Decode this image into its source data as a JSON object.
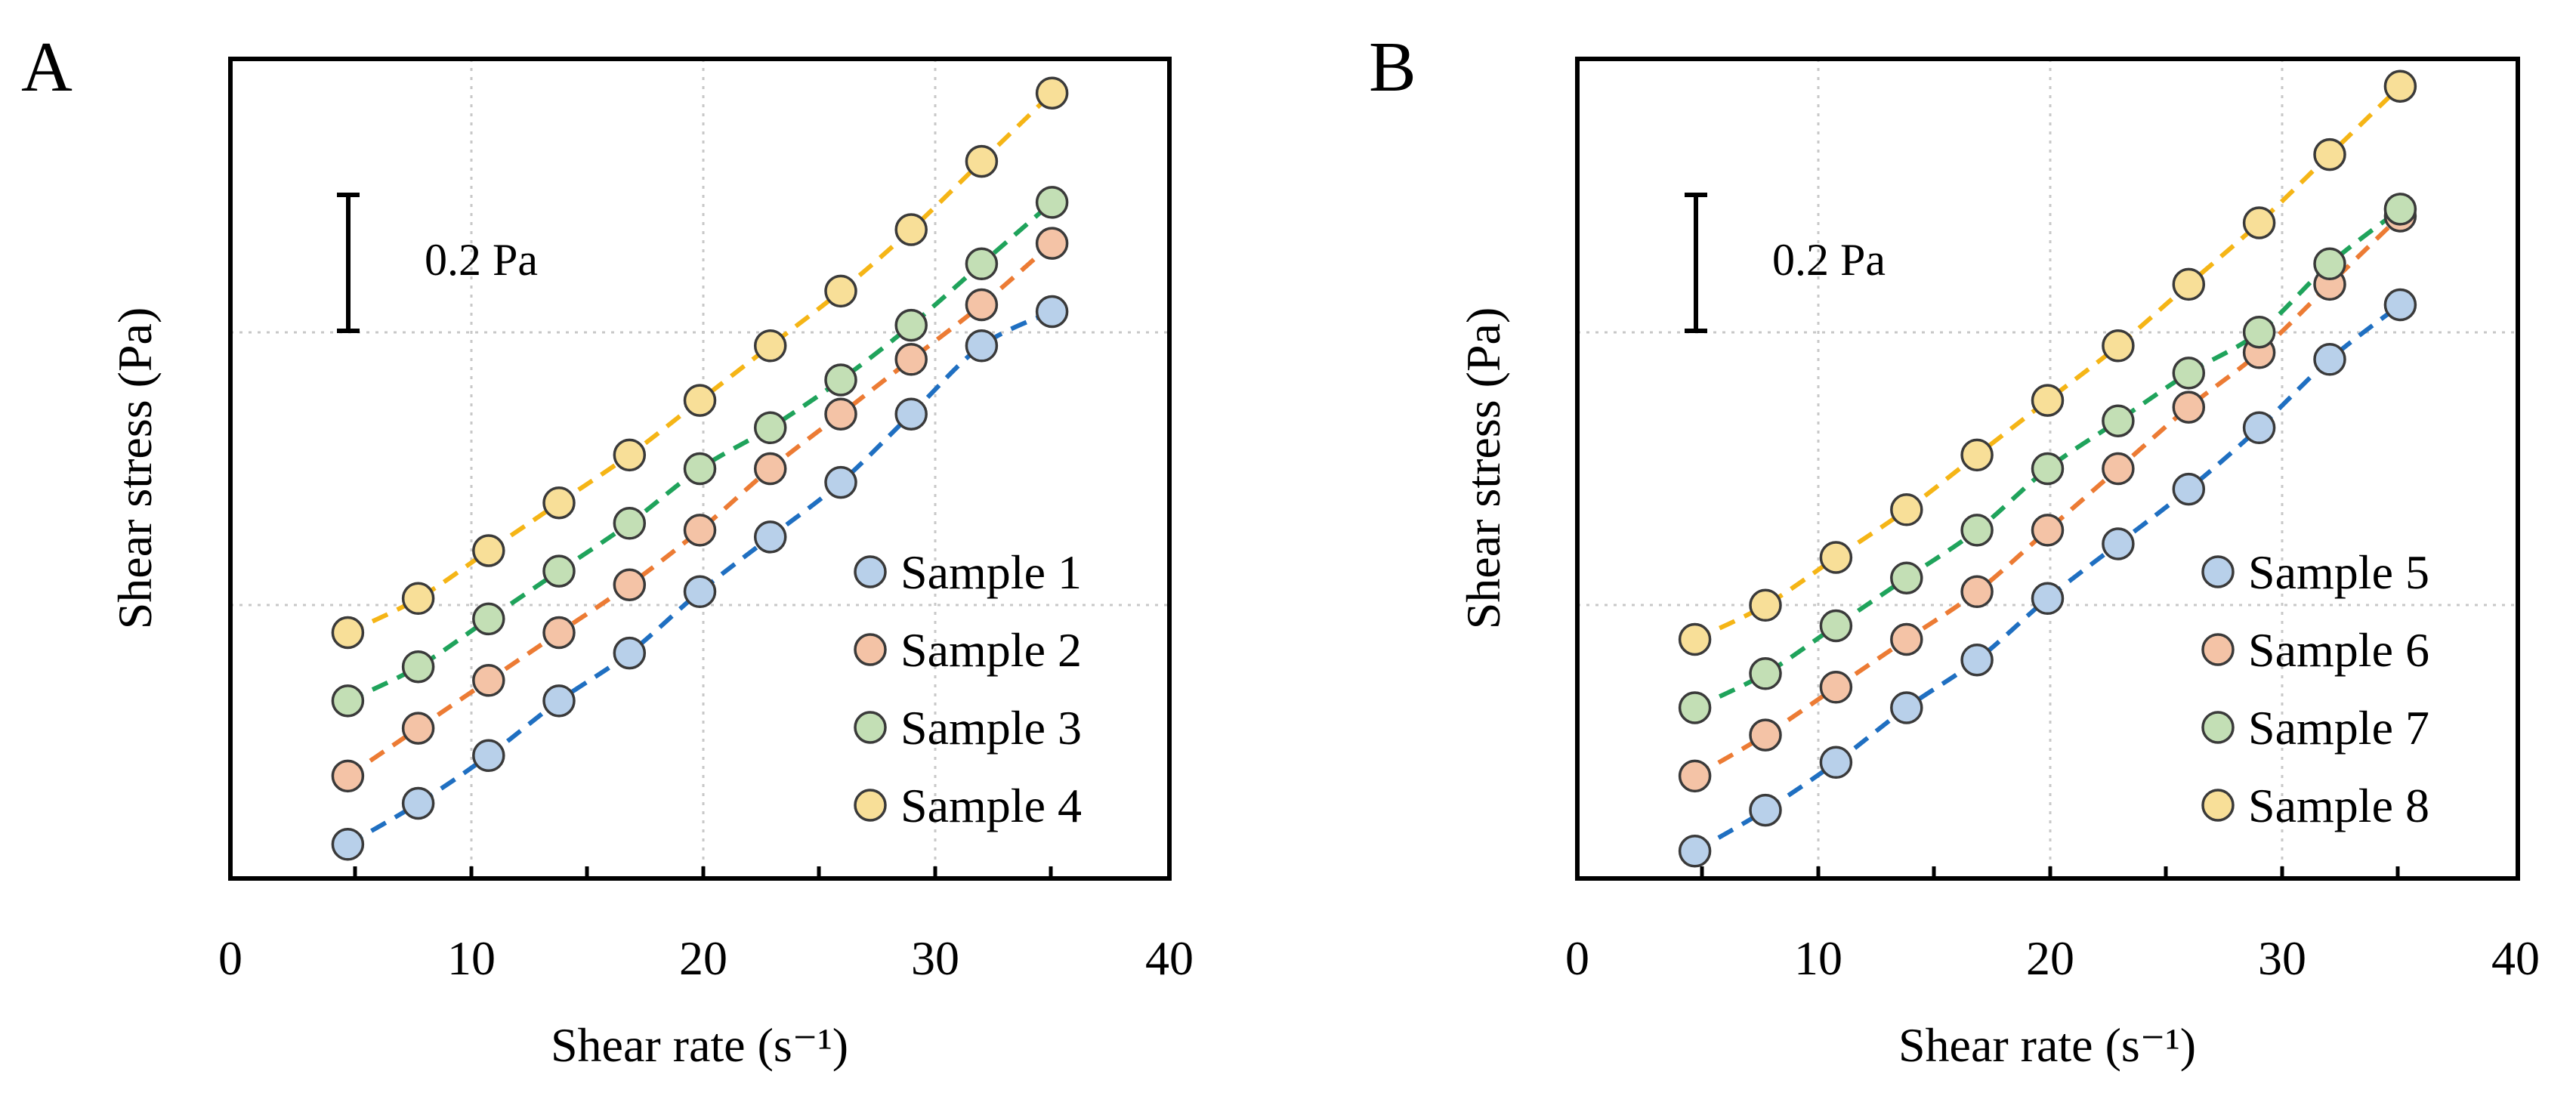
{
  "chart_data": [
    {
      "type": "scatter",
      "panel_label": "A",
      "xlabel": "Shear rate (s⁻¹)",
      "ylabel": "Shear stress (Pa)",
      "xlim": [
        0,
        40
      ],
      "ylim": [
        0,
        1.2
      ],
      "x_ticks": [
        0,
        10,
        20,
        30,
        40
      ],
      "y_tick_labels_shown": false,
      "grid": true,
      "scale_bar": {
        "label": "0.2 Pa",
        "value": 0.2,
        "y_from": 0.8,
        "y_to": 1.0,
        "x": 5
      },
      "legend_position": "lower-right",
      "fit_line_style": "dashed",
      "x": [
        5,
        8,
        11,
        14,
        17,
        20,
        23,
        26,
        29,
        32,
        35
      ],
      "series": [
        {
          "name": "Sample 1",
          "marker_color": "#b8d0ea",
          "line_color": "#1f6fc1",
          "values": [
            0.05,
            0.11,
            0.18,
            0.26,
            0.33,
            0.42,
            0.5,
            0.58,
            0.68,
            0.78,
            0.83
          ]
        },
        {
          "name": "Sample 2",
          "marker_color": "#f4c3a6",
          "line_color": "#ec7b34",
          "values": [
            0.15,
            0.22,
            0.29,
            0.36,
            0.43,
            0.51,
            0.6,
            0.68,
            0.76,
            0.84,
            0.93
          ]
        },
        {
          "name": "Sample 3",
          "marker_color": "#c3dfb5",
          "line_color": "#1fa35b",
          "values": [
            0.26,
            0.31,
            0.38,
            0.45,
            0.52,
            0.6,
            0.66,
            0.73,
            0.81,
            0.9,
            0.99
          ]
        },
        {
          "name": "Sample 4",
          "marker_color": "#f8df98",
          "line_color": "#f5b516",
          "values": [
            0.36,
            0.41,
            0.48,
            0.55,
            0.62,
            0.7,
            0.78,
            0.86,
            0.95,
            1.05,
            1.15
          ]
        }
      ]
    },
    {
      "type": "scatter",
      "panel_label": "B",
      "xlabel": "Shear rate (s⁻¹)",
      "ylabel": "Shear stress (Pa)",
      "xlim": [
        0,
        40
      ],
      "ylim": [
        0,
        1.2
      ],
      "x_ticks": [
        0,
        10,
        20,
        30,
        40
      ],
      "y_tick_labels_shown": false,
      "grid": true,
      "scale_bar": {
        "label": "0.2 Pa",
        "value": 0.2,
        "y_from": 0.8,
        "y_to": 1.0,
        "x": 5
      },
      "legend_position": "lower-right",
      "fit_line_style": "dashed",
      "x": [
        5,
        8,
        11,
        14,
        17,
        20,
        23,
        26,
        29,
        32,
        35
      ],
      "series": [
        {
          "name": "Sample 5",
          "marker_color": "#b8d0ea",
          "line_color": "#1f6fc1",
          "values": [
            0.04,
            0.1,
            0.17,
            0.25,
            0.32,
            0.41,
            0.49,
            0.57,
            0.66,
            0.76,
            0.84
          ]
        },
        {
          "name": "Sample 6",
          "marker_color": "#f4c3a6",
          "line_color": "#ec7b34",
          "values": [
            0.15,
            0.21,
            0.28,
            0.35,
            0.42,
            0.51,
            0.6,
            0.69,
            0.77,
            0.87,
            0.97
          ]
        },
        {
          "name": "Sample 7",
          "marker_color": "#c3dfb5",
          "line_color": "#1fa35b",
          "values": [
            0.25,
            0.3,
            0.37,
            0.44,
            0.51,
            0.6,
            0.67,
            0.74,
            0.8,
            0.9,
            0.98
          ]
        },
        {
          "name": "Sample 8",
          "marker_color": "#f8df98",
          "line_color": "#f5b516",
          "values": [
            0.35,
            0.4,
            0.47,
            0.54,
            0.62,
            0.7,
            0.78,
            0.87,
            0.96,
            1.06,
            1.16
          ]
        }
      ]
    }
  ]
}
